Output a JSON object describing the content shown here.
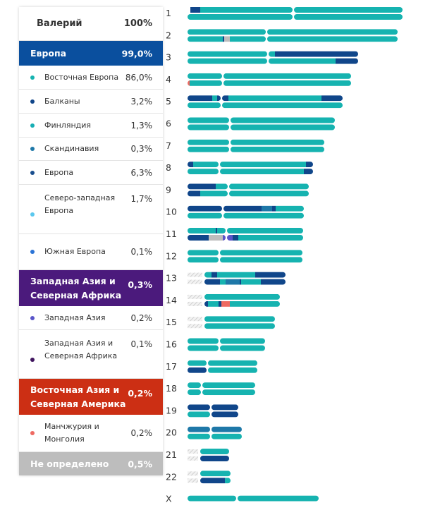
{
  "person": {
    "name": "Валерий",
    "pct": "100%"
  },
  "legend": [
    {
      "kind": "hdr",
      "label": "Европа",
      "pct": "99,0%",
      "color": "#0a4f9e",
      "h": 35
    },
    {
      "kind": "row",
      "label": "Восточная Европа",
      "pct": "86,0%",
      "color": "#16b3b0",
      "h": 34
    },
    {
      "kind": "row",
      "label": "Балканы",
      "pct": "3,2%",
      "color": "#10468a",
      "h": 34
    },
    {
      "kind": "row",
      "label": "Финляндия",
      "pct": "1,3%",
      "color": "#17aeb4",
      "h": 34
    },
    {
      "kind": "row",
      "label": "Скандинавия",
      "pct": "0,3%",
      "color": "#1e78a8",
      "h": 33
    },
    {
      "kind": "row",
      "label": "Европа",
      "pct": "6,3%",
      "color": "#1a4f8e",
      "h": 34
    },
    {
      "kind": "row top",
      "label": "Северо-западная Европа",
      "pct": "1,7%",
      "color": "#5bc8ee",
      "h": 70
    },
    {
      "kind": "row",
      "label": "Южная Европа",
      "pct": "0,1%",
      "color": "#2b74d6",
      "h": 51
    },
    {
      "kind": "hdr multi",
      "label": "Западная Азия и Северная Африка",
      "pct": "0,3%",
      "color": "#4b1a7c",
      "h": 51
    },
    {
      "kind": "row",
      "label": "Западная Азия",
      "pct": "0,2%",
      "color": "#5a55c9",
      "h": 34
    },
    {
      "kind": "row top",
      "label": "Западная Азия и Северная Африка",
      "pct": "0,1%",
      "color": "#40155e",
      "h": 69
    },
    {
      "kind": "hdr multi",
      "label": "Восточная Азия и Северная Америка",
      "pct": "0,2%",
      "color": "#cc2f14",
      "h": 51
    },
    {
      "kind": "row",
      "label": "Манчжурия и Монголия",
      "pct": "0,2%",
      "color": "#ee6a62",
      "h": 53
    },
    {
      "kind": "hdr",
      "label": "Не определено",
      "pct": "0,5%",
      "color": "#bdbdbd",
      "h": 33
    }
  ],
  "chart_data": {
    "type": "chromosome-painting",
    "colors": {
      "teal": "#16b3b0",
      "navy": "#10468a",
      "blue": "#1e78a8",
      "lightblue": "#5bc8ee",
      "purple": "#5a55c9",
      "red": "#ee6a62",
      "grey": "#bdbdbd"
    },
    "chromosomes": [
      {
        "label": "1",
        "len": 305,
        "cen": 150,
        "copies": [
          [
            [
              "navy",
              4,
              18
            ],
            [
              "teal",
              18,
              305
            ]
          ],
          [
            [
              "teal",
              0,
              305
            ]
          ]
        ]
      },
      {
        "label": "2",
        "len": 298,
        "cen": 112,
        "copies": [
          [
            [
              "teal",
              0,
              298
            ]
          ],
          [
            [
              "teal",
              0,
              50
            ],
            [
              "navy",
              50,
              52
            ],
            [
              "grey",
              52,
              60
            ],
            [
              "teal",
              60,
              298
            ]
          ]
        ]
      },
      {
        "label": "3",
        "len": 242,
        "cen": 114,
        "copies": [
          [
            [
              "teal",
              0,
              124
            ],
            [
              "navy",
              124,
              242
            ]
          ],
          [
            [
              "teal",
              0,
              210
            ],
            [
              "navy",
              210,
              242
            ]
          ]
        ]
      },
      {
        "label": "4",
        "len": 232,
        "cen": 50,
        "copies": [
          [
            [
              "teal",
              0,
              232
            ]
          ],
          [
            [
              "red",
              0,
              3
            ],
            [
              "teal",
              3,
              232
            ]
          ]
        ]
      },
      {
        "label": "5",
        "len": 220,
        "cen": 48,
        "copies": [
          [
            [
              "navy",
              0,
              35
            ],
            [
              "teal",
              35,
              42
            ],
            [
              "navy",
              42,
              58
            ],
            [
              "teal",
              58,
              190
            ],
            [
              "navy",
              190,
              220
            ]
          ],
          [
            [
              "teal",
              0,
              220
            ]
          ]
        ]
      },
      {
        "label": "6",
        "len": 209,
        "cen": 60,
        "copies": [
          [
            [
              "teal",
              0,
              209
            ]
          ],
          [
            [
              "teal",
              0,
              209
            ]
          ]
        ]
      },
      {
        "label": "7",
        "len": 194,
        "cen": 60,
        "copies": [
          [
            [
              "teal",
              0,
              194
            ]
          ],
          [
            [
              "teal",
              0,
              194
            ]
          ]
        ]
      },
      {
        "label": "8",
        "len": 178,
        "cen": 45,
        "copies": [
          [
            [
              "navy",
              0,
              8
            ],
            [
              "teal",
              8,
              168
            ],
            [
              "navy",
              168,
              178
            ]
          ],
          [
            [
              "teal",
              0,
              165
            ],
            [
              "navy",
              165,
              178
            ]
          ]
        ]
      },
      {
        "label": "9",
        "len": 172,
        "cen": 58,
        "copies": [
          [
            [
              "navy",
              0,
              40
            ],
            [
              "teal",
              40,
              172
            ]
          ],
          [
            [
              "navy",
              0,
              18
            ],
            [
              "teal",
              18,
              172
            ]
          ]
        ]
      },
      {
        "label": "10",
        "len": 165,
        "cen": 50,
        "copies": [
          [
            [
              "navy",
              0,
              105
            ],
            [
              "blue",
              105,
              120
            ],
            [
              "navy",
              120,
              125
            ],
            [
              "teal",
              125,
              165
            ]
          ],
          [
            [
              "teal",
              0,
              165
            ]
          ]
        ]
      },
      {
        "label": "11",
        "len": 164,
        "cen": 55,
        "copies": [
          [
            [
              "teal",
              0,
              40
            ],
            [
              "navy",
              40,
              42
            ],
            [
              "teal",
              42,
              164
            ]
          ],
          [
            [
              "navy",
              0,
              30
            ],
            [
              "grey",
              30,
              50
            ],
            [
              "purple",
              50,
              64
            ],
            [
              "navy",
              64,
              72
            ],
            [
              "teal",
              72,
              164
            ]
          ]
        ]
      },
      {
        "label": "12",
        "len": 163,
        "cen": 45,
        "copies": [
          [
            [
              "teal",
              0,
              163
            ]
          ],
          [
            [
              "teal",
              0,
              163
            ]
          ]
        ]
      },
      {
        "label": "13",
        "len": 115,
        "cen": 0,
        "gap": 24,
        "copies": [
          [
            [
              "teal",
              0,
              10
            ],
            [
              "navy",
              10,
              18
            ],
            [
              "teal",
              18,
              72
            ],
            [
              "navy",
              72,
              115
            ]
          ],
          [
            [
              "navy",
              0,
              22
            ],
            [
              "teal",
              22,
              30
            ],
            [
              "blue",
              30,
              50
            ],
            [
              "navy",
              50,
              52
            ],
            [
              "teal",
              52,
              80
            ],
            [
              "navy",
              80,
              115
            ]
          ]
        ]
      },
      {
        "label": "14",
        "len": 107,
        "cen": 0,
        "gap": 24,
        "copies": [
          [
            [
              "teal",
              0,
              107
            ]
          ],
          [
            [
              "navy",
              0,
              5
            ],
            [
              "teal",
              5,
              20
            ],
            [
              "navy",
              20,
              24
            ],
            [
              "red",
              24,
              36
            ],
            [
              "teal",
              36,
              107
            ]
          ]
        ]
      },
      {
        "label": "15",
        "len": 100,
        "cen": 0,
        "gap": 24,
        "copies": [
          [
            [
              "teal",
              0,
              100
            ]
          ],
          [
            [
              "teal",
              0,
              100
            ]
          ]
        ]
      },
      {
        "label": "16",
        "len": 110,
        "cen": 45,
        "copies": [
          [
            [
              "teal",
              0,
              110
            ]
          ],
          [
            [
              "teal",
              0,
              110
            ]
          ]
        ]
      },
      {
        "label": "17",
        "len": 99,
        "cen": 28,
        "copies": [
          [
            [
              "teal",
              0,
              99
            ]
          ],
          [
            [
              "navy",
              0,
              28
            ],
            [
              "teal",
              28,
              99
            ]
          ]
        ]
      },
      {
        "label": "18",
        "len": 96,
        "cen": 20,
        "copies": [
          [
            [
              "teal",
              0,
              96
            ]
          ],
          [
            [
              "teal",
              0,
              96
            ]
          ]
        ]
      },
      {
        "label": "19",
        "len": 72,
        "cen": 33,
        "copies": [
          [
            [
              "navy",
              0,
              72
            ]
          ],
          [
            [
              "teal",
              0,
              33
            ],
            [
              "navy",
              33,
              72
            ]
          ]
        ]
      },
      {
        "label": "20",
        "len": 77,
        "cen": 33,
        "copies": [
          [
            [
              "blue",
              0,
              77
            ]
          ],
          [
            [
              "teal",
              0,
              77
            ]
          ]
        ]
      },
      {
        "label": "21",
        "len": 41,
        "cen": 0,
        "gap": 18,
        "copies": [
          [
            [
              "teal",
              0,
              41
            ]
          ],
          [
            [
              "navy",
              0,
              41
            ]
          ]
        ]
      },
      {
        "label": "22",
        "len": 43,
        "cen": 0,
        "gap": 18,
        "copies": [
          [
            [
              "teal",
              0,
              43
            ]
          ],
          [
            [
              "navy",
              0,
              35
            ],
            [
              "teal",
              35,
              43
            ]
          ]
        ]
      },
      {
        "label": "X",
        "len": 186,
        "cen": 70,
        "single": true,
        "copies": [
          [
            [
              "teal",
              0,
              186
            ]
          ]
        ]
      }
    ]
  }
}
